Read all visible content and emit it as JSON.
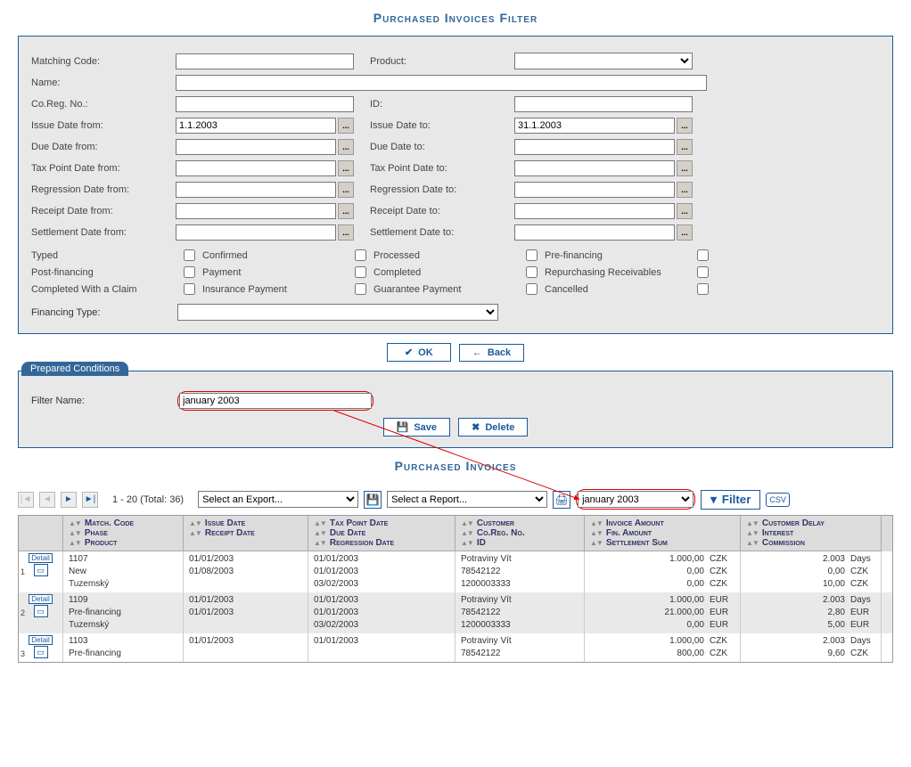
{
  "titles": {
    "filter": "Purchased Invoices Filter",
    "invoices": "Purchased Invoices"
  },
  "filter": {
    "matching_code_lbl": "Matching Code:",
    "matching_code": "",
    "product_lbl": "Product:",
    "name_lbl": "Name:",
    "name": "",
    "coreg_lbl": "Co.Reg. No.:",
    "coreg": "",
    "id_lbl": "ID:",
    "id": "",
    "issue_from_lbl": "Issue Date from:",
    "issue_from": "1.1.2003",
    "issue_to_lbl": "Issue Date to:",
    "issue_to": "31.1.2003",
    "due_from_lbl": "Due Date from:",
    "due_from": "",
    "due_to_lbl": "Due Date to:",
    "due_to": "",
    "tax_from_lbl": "Tax Point Date from:",
    "tax_from": "",
    "tax_to_lbl": "Tax Point Date to:",
    "tax_to": "",
    "reg_from_lbl": "Regression Date from:",
    "reg_from": "",
    "reg_to_lbl": "Regression Date to:",
    "reg_to": "",
    "rec_from_lbl": "Receipt Date from:",
    "rec_from": "",
    "rec_to_lbl": "Receipt Date to:",
    "rec_to": "",
    "set_from_lbl": "Settlement Date from:",
    "set_from": "",
    "set_to_lbl": "Settlement Date to:",
    "set_to": "",
    "picker_btn": "...",
    "chk": {
      "typed": "Typed",
      "confirmed": "Confirmed",
      "processed": "Processed",
      "prefin": "Pre-financing",
      "postfin": "Post-financing",
      "payment": "Payment",
      "completed": "Completed",
      "repurch": "Repurchasing Receivables",
      "compclaim": "Completed With a Claim",
      "inspay": "Insurance Payment",
      "guarpay": "Guarantee Payment",
      "cancelled": "Cancelled"
    },
    "fin_type_lbl": "Financing Type:"
  },
  "buttons": {
    "ok": "OK",
    "back": "Back",
    "save": "Save",
    "delete": "Delete",
    "filter": "Filter",
    "csv": "CSV",
    "detail": "Detail"
  },
  "prep": {
    "title": "Prepared Conditions",
    "filter_name_lbl": "Filter Name:",
    "filter_name": "january 2003"
  },
  "toolbar": {
    "pager_text": "1 - 20 (Total: 36)",
    "export_placeholder": "Select an Export...",
    "report_placeholder": "Select a Report...",
    "filter_selected": "january 2003"
  },
  "table": {
    "headers": {
      "c1": [
        "Match. Code",
        "Phase",
        "Product"
      ],
      "c2": [
        "Issue Date",
        "Receipt Date"
      ],
      "c3": [
        "Tax Point Date",
        "Due Date",
        "Regression Date"
      ],
      "c4": [
        "Customer",
        "Co.Reg. No.",
        "ID"
      ],
      "c5": [
        "Invoice Amount",
        "Fin. Amount",
        "Settlement Sum"
      ],
      "c6": [
        "Customer Delay",
        "Interest",
        "Commission"
      ]
    },
    "rows": [
      {
        "idx": "1",
        "c1": [
          "1107",
          "New",
          "Tuzemský"
        ],
        "c2": [
          "01/01/2003",
          "01/08/2003",
          ""
        ],
        "c3": [
          "01/01/2003",
          "01/01/2003",
          "03/02/2003"
        ],
        "c4": [
          "Potraviny Vít",
          "78542122",
          "1200003333"
        ],
        "c5": [
          [
            "1.000,00",
            "CZK"
          ],
          [
            "0,00",
            "CZK"
          ],
          [
            "0,00",
            "CZK"
          ]
        ],
        "c6": [
          [
            "2.003",
            "Days"
          ],
          [
            "0,00",
            "CZK"
          ],
          [
            "10,00",
            "CZK"
          ]
        ]
      },
      {
        "idx": "2",
        "c1": [
          "1109",
          "Pre-financing",
          "Tuzemský"
        ],
        "c2": [
          "01/01/2003",
          "01/01/2003",
          ""
        ],
        "c3": [
          "01/01/2003",
          "01/01/2003",
          "03/02/2003"
        ],
        "c4": [
          "Potraviny Vít",
          "78542122",
          "1200003333"
        ],
        "c5": [
          [
            "1.000,00",
            "EUR"
          ],
          [
            "21.000,00",
            "EUR"
          ],
          [
            "0,00",
            "EUR"
          ]
        ],
        "c6": [
          [
            "2.003",
            "Days"
          ],
          [
            "2,80",
            "EUR"
          ],
          [
            "5,00",
            "EUR"
          ]
        ]
      },
      {
        "idx": "3",
        "c1": [
          "1103",
          "Pre-financing",
          ""
        ],
        "c2": [
          "01/01/2003",
          "",
          ""
        ],
        "c3": [
          "01/01/2003",
          "",
          ""
        ],
        "c4": [
          "Potraviny Vít",
          "78542122",
          ""
        ],
        "c5": [
          [
            "1.000,00",
            "CZK"
          ],
          [
            "800,00",
            "CZK"
          ],
          [
            "",
            ""
          ]
        ],
        "c6": [
          [
            "2.003",
            "Days"
          ],
          [
            "9,60",
            "CZK"
          ],
          [
            "",
            ""
          ]
        ]
      }
    ]
  },
  "colors": {
    "accent": "#1b5a9e",
    "panel": "#e8e8e8",
    "highlight": "#e00000"
  }
}
